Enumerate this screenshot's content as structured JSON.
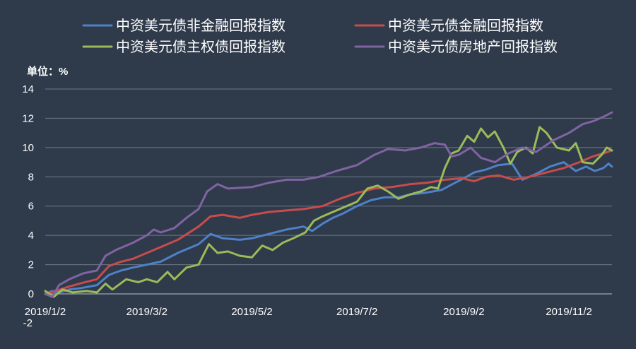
{
  "chart_data": {
    "type": "line",
    "unit_label": "单位：%",
    "background": "#2f3a4b",
    "grid_color": "#6f7886",
    "text_color": "#ffffff",
    "ylim": [
      -2,
      14
    ],
    "y_ticks": [
      0,
      2,
      4,
      6,
      8,
      10,
      12,
      14
    ],
    "y_bottom_label": "-2",
    "grid": true,
    "legend_position": "top",
    "x_ticks": [
      "2019/1/2",
      "2019/3/2",
      "2019/5/2",
      "2019/7/2",
      "2019/9/2",
      "2019/11/2"
    ],
    "x_range": [
      "2019-01-02",
      "2019-11-27"
    ],
    "series": [
      {
        "name": "中资美元债非金融回报指数",
        "color": "#4f81c7",
        "points": [
          [
            "2019-01-02",
            0.0
          ],
          [
            "2019-01-06",
            0.2
          ],
          [
            "2019-01-10",
            0.1
          ],
          [
            "2019-01-16",
            0.3
          ],
          [
            "2019-01-23",
            0.4
          ],
          [
            "2019-02-01",
            0.6
          ],
          [
            "2019-02-08",
            1.3
          ],
          [
            "2019-02-15",
            1.6
          ],
          [
            "2019-02-22",
            1.8
          ],
          [
            "2019-03-02",
            2.0
          ],
          [
            "2019-03-10",
            2.2
          ],
          [
            "2019-03-20",
            2.8
          ],
          [
            "2019-04-01",
            3.4
          ],
          [
            "2019-04-08",
            4.1
          ],
          [
            "2019-04-15",
            3.8
          ],
          [
            "2019-04-25",
            3.7
          ],
          [
            "2019-05-02",
            3.8
          ],
          [
            "2019-05-12",
            4.1
          ],
          [
            "2019-05-22",
            4.4
          ],
          [
            "2019-06-01",
            4.6
          ],
          [
            "2019-06-06",
            4.3
          ],
          [
            "2019-06-12",
            4.8
          ],
          [
            "2019-06-18",
            5.2
          ],
          [
            "2019-06-24",
            5.5
          ],
          [
            "2019-07-02",
            6.0
          ],
          [
            "2019-07-10",
            6.4
          ],
          [
            "2019-07-18",
            6.6
          ],
          [
            "2019-07-26",
            6.6
          ],
          [
            "2019-08-02",
            6.8
          ],
          [
            "2019-08-10",
            6.9
          ],
          [
            "2019-08-20",
            7.1
          ],
          [
            "2019-08-28",
            7.6
          ],
          [
            "2019-09-02",
            7.9
          ],
          [
            "2019-09-08",
            8.3
          ],
          [
            "2019-09-15",
            8.5
          ],
          [
            "2019-09-22",
            8.8
          ],
          [
            "2019-09-30",
            8.9
          ],
          [
            "2019-10-06",
            7.8
          ],
          [
            "2019-10-14",
            8.2
          ],
          [
            "2019-10-22",
            8.7
          ],
          [
            "2019-10-30",
            9.0
          ],
          [
            "2019-11-06",
            8.4
          ],
          [
            "2019-11-12",
            8.7
          ],
          [
            "2019-11-17",
            8.4
          ],
          [
            "2019-11-22",
            8.6
          ],
          [
            "2019-11-25",
            8.9
          ],
          [
            "2019-11-27",
            8.7
          ]
        ]
      },
      {
        "name": "中资美元债金融回报指数",
        "color": "#c84c4c",
        "points": [
          [
            "2019-01-02",
            0.0
          ],
          [
            "2019-01-08",
            0.2
          ],
          [
            "2019-01-16",
            0.5
          ],
          [
            "2019-01-25",
            0.8
          ],
          [
            "2019-02-01",
            1.0
          ],
          [
            "2019-02-08",
            1.9
          ],
          [
            "2019-02-15",
            2.2
          ],
          [
            "2019-02-22",
            2.4
          ],
          [
            "2019-03-02",
            2.8
          ],
          [
            "2019-03-10",
            3.2
          ],
          [
            "2019-03-20",
            3.7
          ],
          [
            "2019-04-01",
            4.6
          ],
          [
            "2019-04-08",
            5.3
          ],
          [
            "2019-04-15",
            5.4
          ],
          [
            "2019-04-25",
            5.2
          ],
          [
            "2019-05-02",
            5.4
          ],
          [
            "2019-05-12",
            5.6
          ],
          [
            "2019-05-22",
            5.7
          ],
          [
            "2019-06-01",
            5.8
          ],
          [
            "2019-06-12",
            6.0
          ],
          [
            "2019-06-22",
            6.5
          ],
          [
            "2019-07-02",
            6.9
          ],
          [
            "2019-07-12",
            7.2
          ],
          [
            "2019-07-22",
            7.3
          ],
          [
            "2019-08-02",
            7.5
          ],
          [
            "2019-08-12",
            7.6
          ],
          [
            "2019-08-22",
            7.8
          ],
          [
            "2019-09-01",
            7.9
          ],
          [
            "2019-09-08",
            7.7
          ],
          [
            "2019-09-15",
            8.0
          ],
          [
            "2019-09-22",
            8.1
          ],
          [
            "2019-10-01",
            7.8
          ],
          [
            "2019-10-10",
            8.0
          ],
          [
            "2019-10-20",
            8.3
          ],
          [
            "2019-10-30",
            8.6
          ],
          [
            "2019-11-08",
            9.0
          ],
          [
            "2019-11-16",
            9.4
          ],
          [
            "2019-11-22",
            9.6
          ],
          [
            "2019-11-27",
            9.8
          ]
        ]
      },
      {
        "name": "中资美元债主权债回报指数",
        "color": "#9bbb59",
        "points": [
          [
            "2019-01-02",
            0.2
          ],
          [
            "2019-01-07",
            -0.2
          ],
          [
            "2019-01-12",
            0.3
          ],
          [
            "2019-01-18",
            0.1
          ],
          [
            "2019-01-26",
            0.2
          ],
          [
            "2019-02-01",
            0.1
          ],
          [
            "2019-02-06",
            0.7
          ],
          [
            "2019-02-10",
            0.3
          ],
          [
            "2019-02-18",
            1.0
          ],
          [
            "2019-02-25",
            0.8
          ],
          [
            "2019-03-02",
            1.0
          ],
          [
            "2019-03-08",
            0.8
          ],
          [
            "2019-03-14",
            1.5
          ],
          [
            "2019-03-18",
            1.0
          ],
          [
            "2019-03-25",
            1.8
          ],
          [
            "2019-04-01",
            2.0
          ],
          [
            "2019-04-07",
            3.4
          ],
          [
            "2019-04-12",
            2.8
          ],
          [
            "2019-04-18",
            2.9
          ],
          [
            "2019-04-25",
            2.6
          ],
          [
            "2019-05-02",
            2.5
          ],
          [
            "2019-05-08",
            3.3
          ],
          [
            "2019-05-14",
            3.0
          ],
          [
            "2019-05-20",
            3.5
          ],
          [
            "2019-05-26",
            3.8
          ],
          [
            "2019-06-02",
            4.2
          ],
          [
            "2019-06-07",
            5.0
          ],
          [
            "2019-06-12",
            5.3
          ],
          [
            "2019-06-18",
            5.6
          ],
          [
            "2019-06-24",
            5.9
          ],
          [
            "2019-07-02",
            6.3
          ],
          [
            "2019-07-08",
            7.2
          ],
          [
            "2019-07-14",
            7.4
          ],
          [
            "2019-07-20",
            7.0
          ],
          [
            "2019-07-26",
            6.5
          ],
          [
            "2019-08-02",
            6.8
          ],
          [
            "2019-08-08",
            7.0
          ],
          [
            "2019-08-14",
            7.3
          ],
          [
            "2019-08-18",
            7.2
          ],
          [
            "2019-08-22",
            8.6
          ],
          [
            "2019-08-26",
            9.6
          ],
          [
            "2019-08-30",
            9.8
          ],
          [
            "2019-09-04",
            10.8
          ],
          [
            "2019-09-08",
            10.4
          ],
          [
            "2019-09-12",
            11.3
          ],
          [
            "2019-09-16",
            10.7
          ],
          [
            "2019-09-20",
            11.1
          ],
          [
            "2019-09-25",
            10.0
          ],
          [
            "2019-09-29",
            8.9
          ],
          [
            "2019-10-03",
            9.7
          ],
          [
            "2019-10-08",
            10.0
          ],
          [
            "2019-10-12",
            9.6
          ],
          [
            "2019-10-16",
            11.4
          ],
          [
            "2019-10-20",
            11.0
          ],
          [
            "2019-10-26",
            10.0
          ],
          [
            "2019-11-02",
            9.8
          ],
          [
            "2019-11-06",
            10.3
          ],
          [
            "2019-11-10",
            9.0
          ],
          [
            "2019-11-16",
            8.9
          ],
          [
            "2019-11-21",
            9.5
          ],
          [
            "2019-11-24",
            10.0
          ],
          [
            "2019-11-27",
            9.8
          ]
        ]
      },
      {
        "name": "中资美元债房地产回报指数",
        "color": "#8064a2",
        "points": [
          [
            "2019-01-02",
            0.0
          ],
          [
            "2019-01-06",
            -0.2
          ],
          [
            "2019-01-10",
            0.6
          ],
          [
            "2019-01-16",
            1.0
          ],
          [
            "2019-01-24",
            1.4
          ],
          [
            "2019-02-01",
            1.6
          ],
          [
            "2019-02-06",
            2.6
          ],
          [
            "2019-02-12",
            3.0
          ],
          [
            "2019-02-22",
            3.5
          ],
          [
            "2019-03-02",
            4.0
          ],
          [
            "2019-03-06",
            4.4
          ],
          [
            "2019-03-10",
            4.2
          ],
          [
            "2019-03-18",
            4.5
          ],
          [
            "2019-03-25",
            5.2
          ],
          [
            "2019-04-01",
            5.8
          ],
          [
            "2019-04-06",
            7.0
          ],
          [
            "2019-04-12",
            7.5
          ],
          [
            "2019-04-18",
            7.2
          ],
          [
            "2019-05-02",
            7.3
          ],
          [
            "2019-05-12",
            7.6
          ],
          [
            "2019-05-22",
            7.8
          ],
          [
            "2019-06-01",
            7.8
          ],
          [
            "2019-06-10",
            8.0
          ],
          [
            "2019-06-20",
            8.4
          ],
          [
            "2019-07-02",
            8.8
          ],
          [
            "2019-07-12",
            9.5
          ],
          [
            "2019-07-20",
            9.9
          ],
          [
            "2019-07-30",
            9.8
          ],
          [
            "2019-08-08",
            10.0
          ],
          [
            "2019-08-16",
            10.3
          ],
          [
            "2019-08-22",
            10.2
          ],
          [
            "2019-08-26",
            9.4
          ],
          [
            "2019-08-30",
            9.5
          ],
          [
            "2019-09-06",
            10.0
          ],
          [
            "2019-09-12",
            9.3
          ],
          [
            "2019-09-20",
            9.0
          ],
          [
            "2019-09-28",
            9.6
          ],
          [
            "2019-10-06",
            10.0
          ],
          [
            "2019-10-14",
            9.7
          ],
          [
            "2019-10-24",
            10.5
          ],
          [
            "2019-11-02",
            11.0
          ],
          [
            "2019-11-10",
            11.6
          ],
          [
            "2019-11-16",
            11.8
          ],
          [
            "2019-11-22",
            12.1
          ],
          [
            "2019-11-27",
            12.4
          ]
        ]
      }
    ]
  }
}
